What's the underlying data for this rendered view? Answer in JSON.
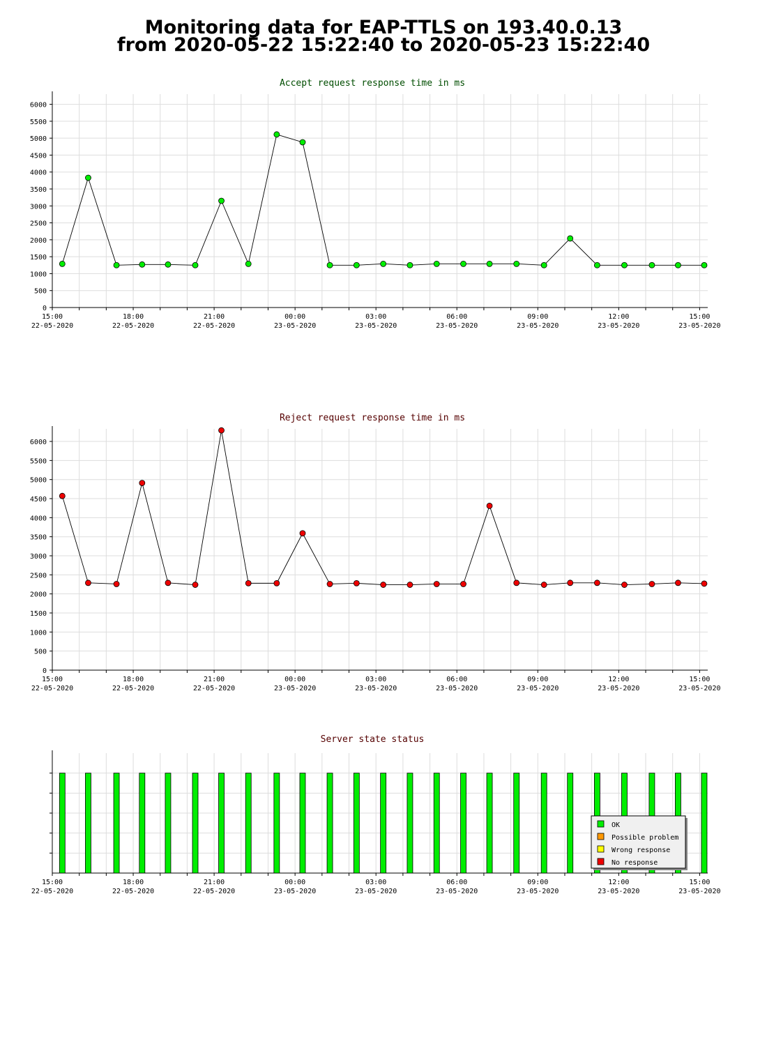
{
  "page": {
    "title_line1": "Monitoring data for EAP-TTLS on 193.40.0.13",
    "title_line2": "from 2020-05-22 15:22:40 to 2020-05-23 15:22:40"
  },
  "colors": {
    "accept_title": "#004d00",
    "reject_title": "#550000",
    "accept_marker": "#00ee00",
    "reject_marker": "#ee0000",
    "ok": "#00ee00",
    "possible_problem": "#ff9900",
    "wrong_response": "#ffff00",
    "no_response": "#ee0000",
    "grid": "#dddddd"
  },
  "chart_data": [
    {
      "type": "line",
      "title": "Accept request response time in ms",
      "x_unit": "hours after 2020-05-22 15:00",
      "x_ticks": [
        {
          "time": "15:00",
          "date": "22-05-2020"
        },
        {
          "time": "18:00",
          "date": "22-05-2020"
        },
        {
          "time": "21:00",
          "date": "22-05-2020"
        },
        {
          "time": "00:00",
          "date": "23-05-2020"
        },
        {
          "time": "03:00",
          "date": "23-05-2020"
        },
        {
          "time": "06:00",
          "date": "23-05-2020"
        },
        {
          "time": "09:00",
          "date": "23-05-2020"
        },
        {
          "time": "12:00",
          "date": "23-05-2020"
        },
        {
          "time": "15:00",
          "date": "23-05-2020"
        }
      ],
      "y_ticks": [
        0,
        500,
        1000,
        1500,
        2000,
        2500,
        3000,
        3500,
        4000,
        4500,
        5000,
        5500,
        6000
      ],
      "ylim": [
        0,
        6300
      ],
      "xlim": [
        0,
        24.3
      ],
      "x": [
        0.37,
        1.33,
        2.38,
        3.33,
        4.29,
        5.3,
        6.27,
        7.27,
        8.32,
        9.28,
        10.29,
        11.28,
        12.27,
        13.26,
        14.25,
        15.24,
        16.21,
        17.21,
        18.23,
        19.2,
        20.2,
        21.21,
        22.23,
        23.2,
        24.17
      ],
      "values": [
        1290,
        3830,
        1250,
        1270,
        1270,
        1250,
        3150,
        1290,
        5110,
        4880,
        1250,
        1250,
        1290,
        1250,
        1290,
        1290,
        1290,
        1290,
        1250,
        2040,
        1250,
        1250,
        1250,
        1250,
        1250
      ],
      "grid": true
    },
    {
      "type": "line",
      "title": "Reject request response time in ms",
      "x_unit": "hours after 2020-05-22 15:00",
      "x_ticks": [
        {
          "time": "15:00",
          "date": "22-05-2020"
        },
        {
          "time": "18:00",
          "date": "22-05-2020"
        },
        {
          "time": "21:00",
          "date": "22-05-2020"
        },
        {
          "time": "00:00",
          "date": "23-05-2020"
        },
        {
          "time": "03:00",
          "date": "23-05-2020"
        },
        {
          "time": "06:00",
          "date": "23-05-2020"
        },
        {
          "time": "09:00",
          "date": "23-05-2020"
        },
        {
          "time": "12:00",
          "date": "23-05-2020"
        },
        {
          "time": "15:00",
          "date": "23-05-2020"
        }
      ],
      "y_ticks": [
        0,
        500,
        1000,
        1500,
        2000,
        2500,
        3000,
        3500,
        4000,
        4500,
        5000,
        5500,
        6000
      ],
      "ylim": [
        0,
        6330
      ],
      "xlim": [
        0,
        24.3
      ],
      "x": [
        0.37,
        1.33,
        2.38,
        3.33,
        4.29,
        5.3,
        6.27,
        7.27,
        8.32,
        9.28,
        10.29,
        11.28,
        12.27,
        13.26,
        14.25,
        15.24,
        16.21,
        17.21,
        18.23,
        19.2,
        20.2,
        21.21,
        22.23,
        23.2,
        24.17
      ],
      "values": [
        4570,
        2290,
        2260,
        4910,
        2290,
        2240,
        6290,
        2280,
        2280,
        3590,
        2260,
        2280,
        2240,
        2240,
        2260,
        2260,
        4310,
        2290,
        2240,
        2290,
        2290,
        2240,
        2260,
        2290,
        2270
      ],
      "grid": true
    },
    {
      "type": "bar",
      "title": "Server state status",
      "x_unit": "hours after 2020-05-22 15:00",
      "x_ticks": [
        {
          "time": "15:00",
          "date": "22-05-2020"
        },
        {
          "time": "18:00",
          "date": "22-05-2020"
        },
        {
          "time": "21:00",
          "date": "22-05-2020"
        },
        {
          "time": "00:00",
          "date": "23-05-2020"
        },
        {
          "time": "03:00",
          "date": "23-05-2020"
        },
        {
          "time": "06:00",
          "date": "23-05-2020"
        },
        {
          "time": "09:00",
          "date": "23-05-2020"
        },
        {
          "time": "12:00",
          "date": "23-05-2020"
        },
        {
          "time": "15:00",
          "date": "23-05-2020"
        }
      ],
      "xlim": [
        0,
        24.3
      ],
      "x": [
        0.37,
        1.33,
        2.38,
        3.33,
        4.29,
        5.3,
        6.27,
        7.27,
        8.32,
        9.28,
        10.29,
        11.28,
        12.27,
        13.26,
        14.25,
        15.24,
        16.21,
        17.21,
        18.23,
        19.2,
        20.2,
        21.21,
        22.23,
        23.2,
        24.17
      ],
      "states": [
        "OK",
        "OK",
        "OK",
        "OK",
        "OK",
        "OK",
        "OK",
        "OK",
        "OK",
        "OK",
        "OK",
        "OK",
        "OK",
        "OK",
        "OK",
        "OK",
        "OK",
        "OK",
        "OK",
        "OK",
        "OK",
        "OK",
        "OK",
        "OK",
        "OK"
      ],
      "legend": [
        {
          "label": "OK",
          "color": "#00ee00"
        },
        {
          "label": "Possible problem",
          "color": "#ff9900"
        },
        {
          "label": "Wrong response",
          "color": "#ffff00"
        },
        {
          "label": "No response",
          "color": "#ee0000"
        }
      ],
      "legend_position": "bottom-right",
      "grid": true
    }
  ]
}
